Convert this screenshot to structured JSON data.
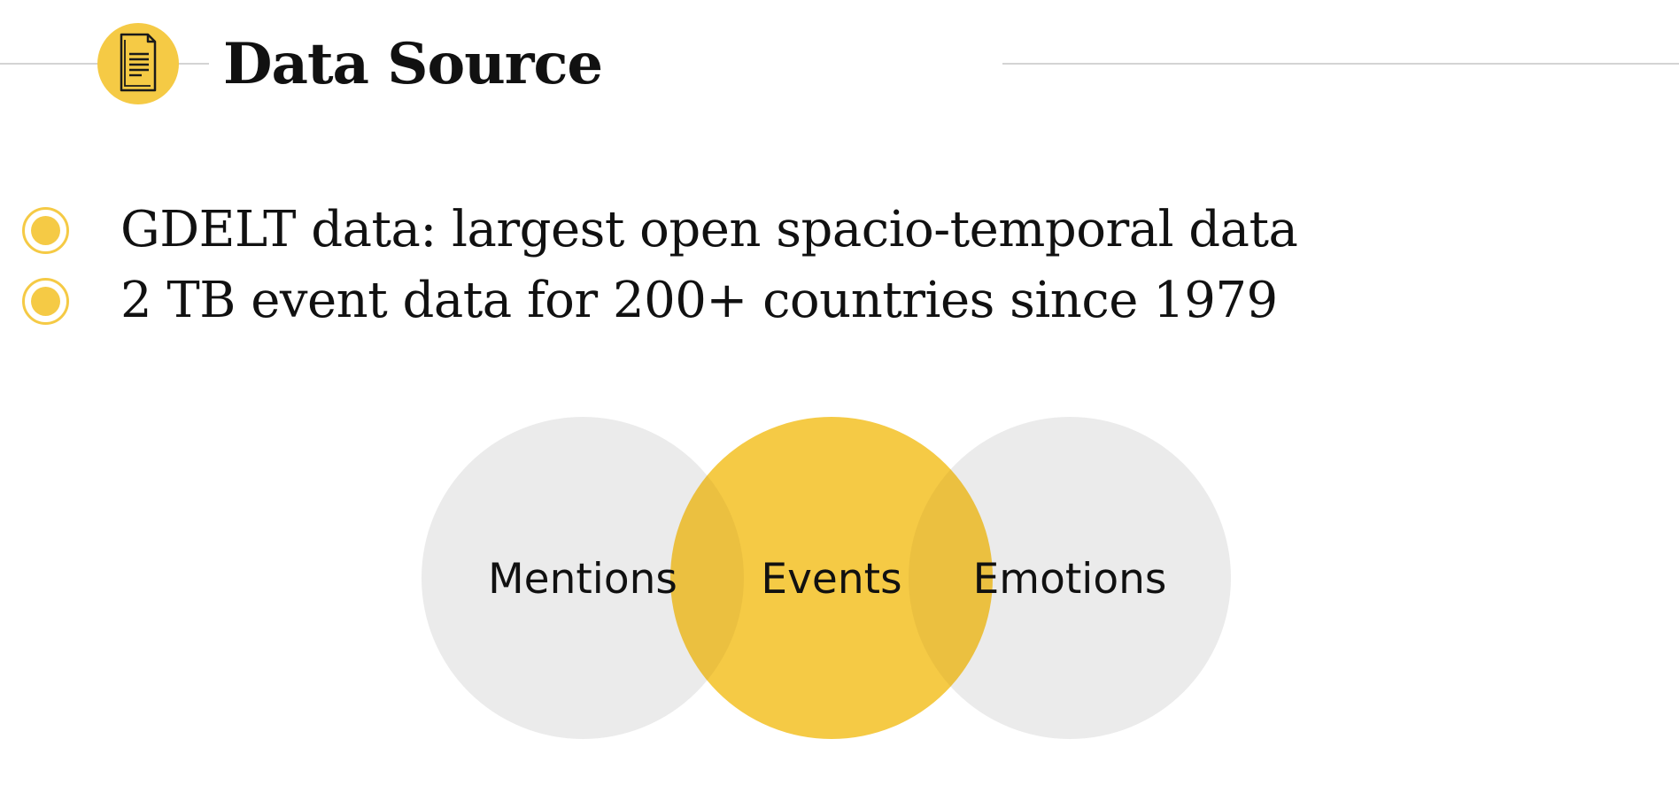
{
  "slide": {
    "title": "Data Source",
    "title_icon": "document-icon",
    "accent_color": "#f5ca45",
    "neutral_color": "#ebebeb",
    "rule_color": "#d4d4d4"
  },
  "bullets": [
    {
      "text": "GDELT data: largest open spacio-temporal data"
    },
    {
      "text": "2 TB event data for 200+ countries since 1979"
    }
  ],
  "venn": {
    "sets": [
      {
        "label": "Mentions",
        "highlighted": false
      },
      {
        "label": "Events",
        "highlighted": true
      },
      {
        "label": "Emotions",
        "highlighted": false
      }
    ]
  }
}
